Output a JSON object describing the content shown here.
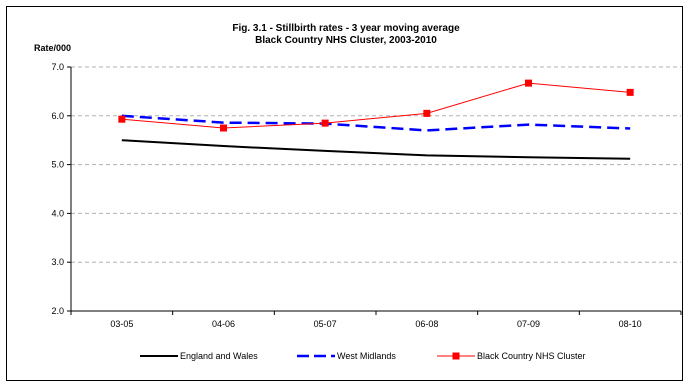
{
  "chart_data": {
    "type": "line",
    "title": "Fig. 3.1 -  Stillbirth rates - 3 year moving average",
    "subtitle": "Black Country NHS Cluster, 2003-2010",
    "ylabel": "Rate/000",
    "xlabel": "",
    "categories": [
      "03-05",
      "04-06",
      "05-07",
      "06-08",
      "07-09",
      "08-10"
    ],
    "ylim": [
      2.0,
      7.0
    ],
    "yticks": [
      "2.0",
      "3.0",
      "4.0",
      "5.0",
      "6.0",
      "7.0"
    ],
    "grid": true,
    "legend_position": "bottom",
    "series": [
      {
        "name": "England and Wales",
        "values": [
          5.5,
          5.38,
          5.28,
          5.19,
          5.15,
          5.12
        ],
        "color": "#000000",
        "style": "solid",
        "marker": "none"
      },
      {
        "name": "West Midlands",
        "values": [
          6.0,
          5.86,
          5.84,
          5.7,
          5.82,
          5.74
        ],
        "color": "#0000ff",
        "style": "dashed",
        "marker": "none"
      },
      {
        "name": "Black Country NHS Cluster",
        "values": [
          5.93,
          5.75,
          5.85,
          6.05,
          6.67,
          6.48
        ],
        "color": "#ff0000",
        "style": "solid",
        "marker": "square"
      }
    ]
  }
}
